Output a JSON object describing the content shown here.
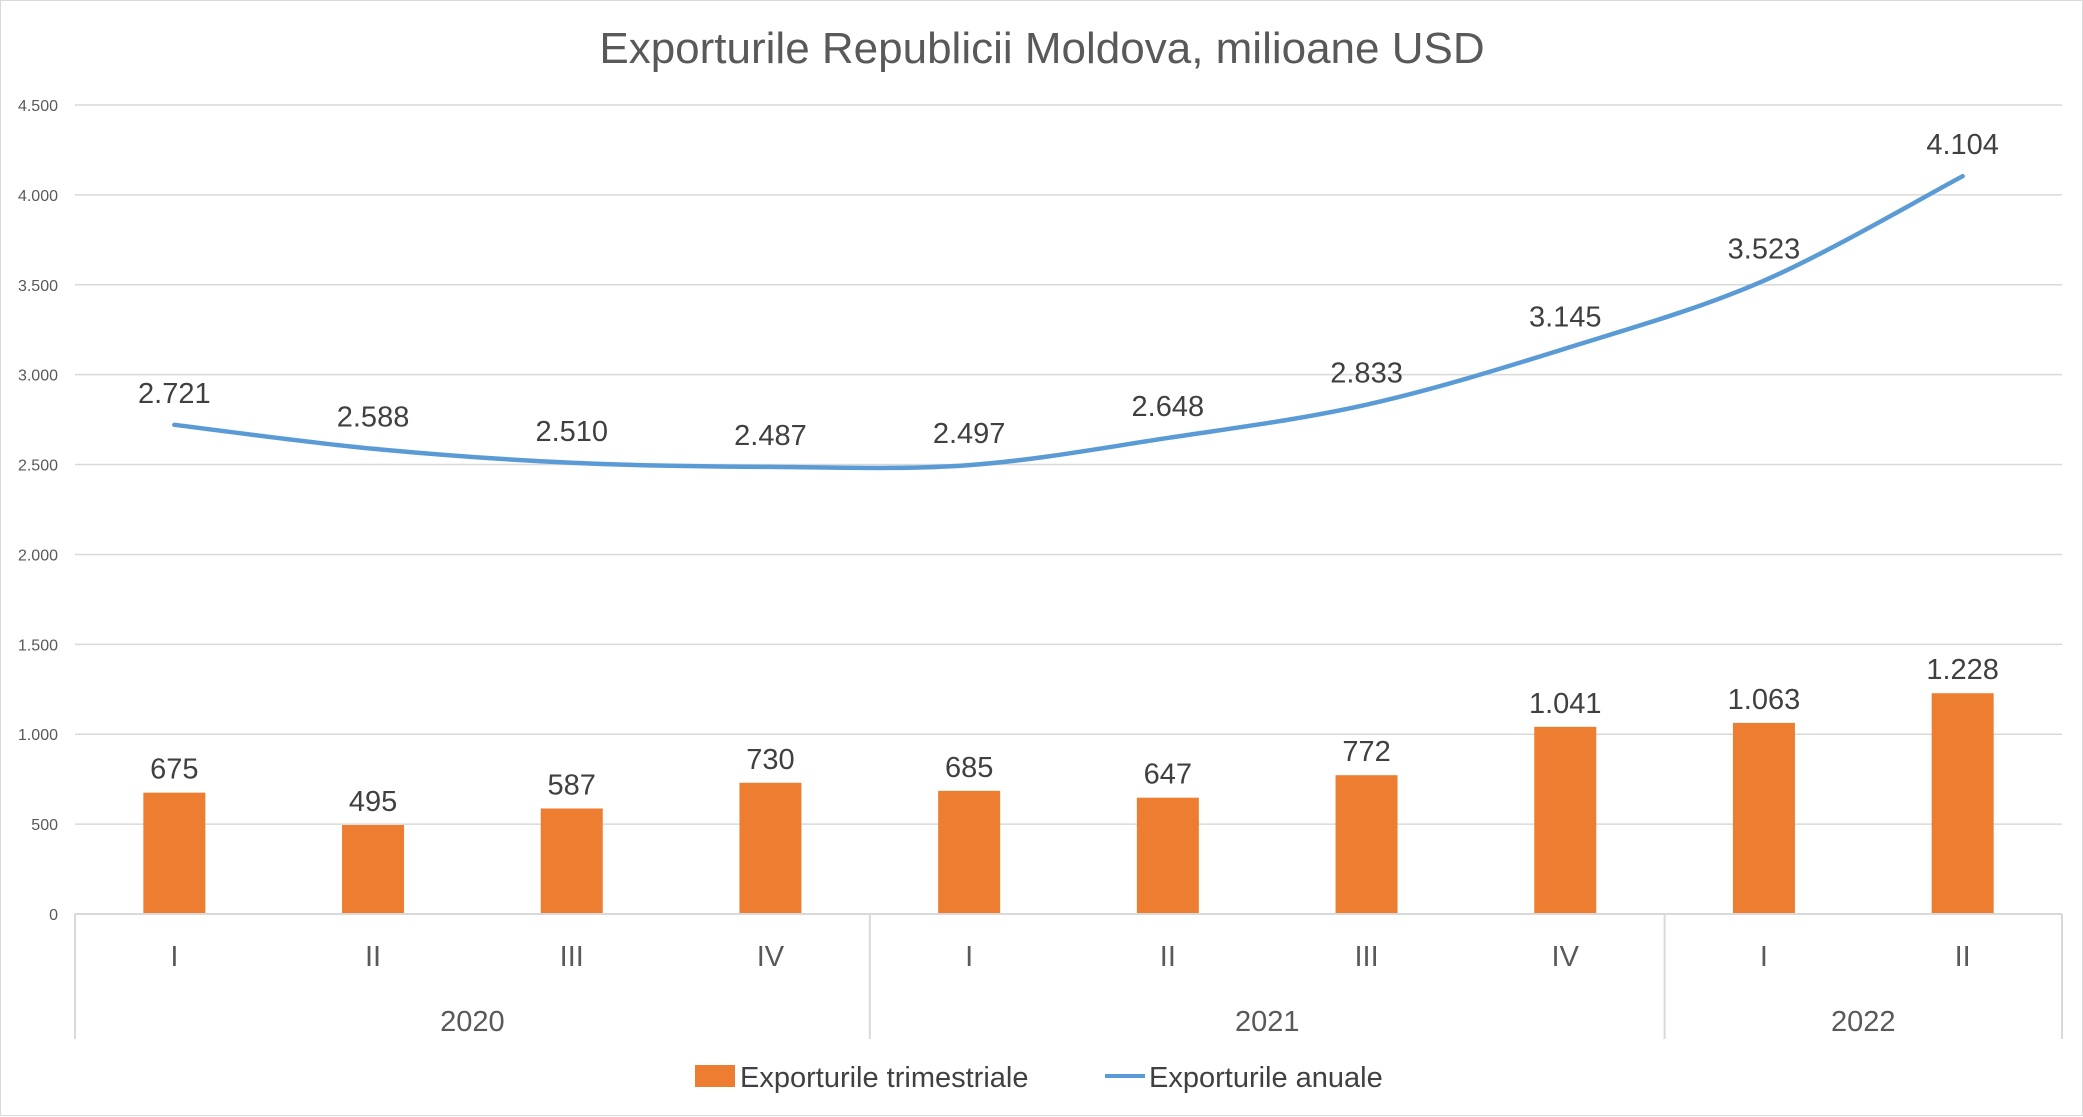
{
  "chart_data": {
    "type": "bar",
    "title": "Exporturile Republicii Moldova, milioane USD",
    "categories": [
      "I",
      "II",
      "III",
      "IV",
      "I",
      "II",
      "III",
      "IV",
      "I",
      "II"
    ],
    "groups": [
      {
        "label": "2020",
        "count": 4
      },
      {
        "label": "2021",
        "count": 4
      },
      {
        "label": "2022",
        "count": 2
      }
    ],
    "ylim": [
      0,
      4500
    ],
    "yticks": [
      0,
      500,
      1000,
      1500,
      2000,
      2500,
      3000,
      3500,
      4000,
      4500
    ],
    "ytick_labels": [
      "0",
      "500",
      "1.000",
      "1.500",
      "2.000",
      "2.500",
      "3.000",
      "3.500",
      "4.000",
      "4.500"
    ],
    "grid": true,
    "legend_position": "bottom",
    "series": [
      {
        "name": "Exporturile trimestriale",
        "kind": "bar",
        "color": "#ed7d31",
        "values": [
          675,
          495,
          587,
          730,
          685,
          647,
          772,
          1041,
          1063,
          1228
        ],
        "labels": [
          "675",
          "495",
          "587",
          "730",
          "685",
          "647",
          "772",
          "1.041",
          "1.063",
          "1.228"
        ]
      },
      {
        "name": "Exporturile anuale",
        "kind": "line",
        "color": "#5b9bd5",
        "values": [
          2721,
          2588,
          2510,
          2487,
          2497,
          2648,
          2833,
          3145,
          3523,
          4104
        ],
        "labels": [
          "2.721",
          "2.588",
          "2.510",
          "2.487",
          "2.497",
          "2.648",
          "2.833",
          "3.145",
          "3.523",
          "4.104"
        ]
      }
    ]
  }
}
